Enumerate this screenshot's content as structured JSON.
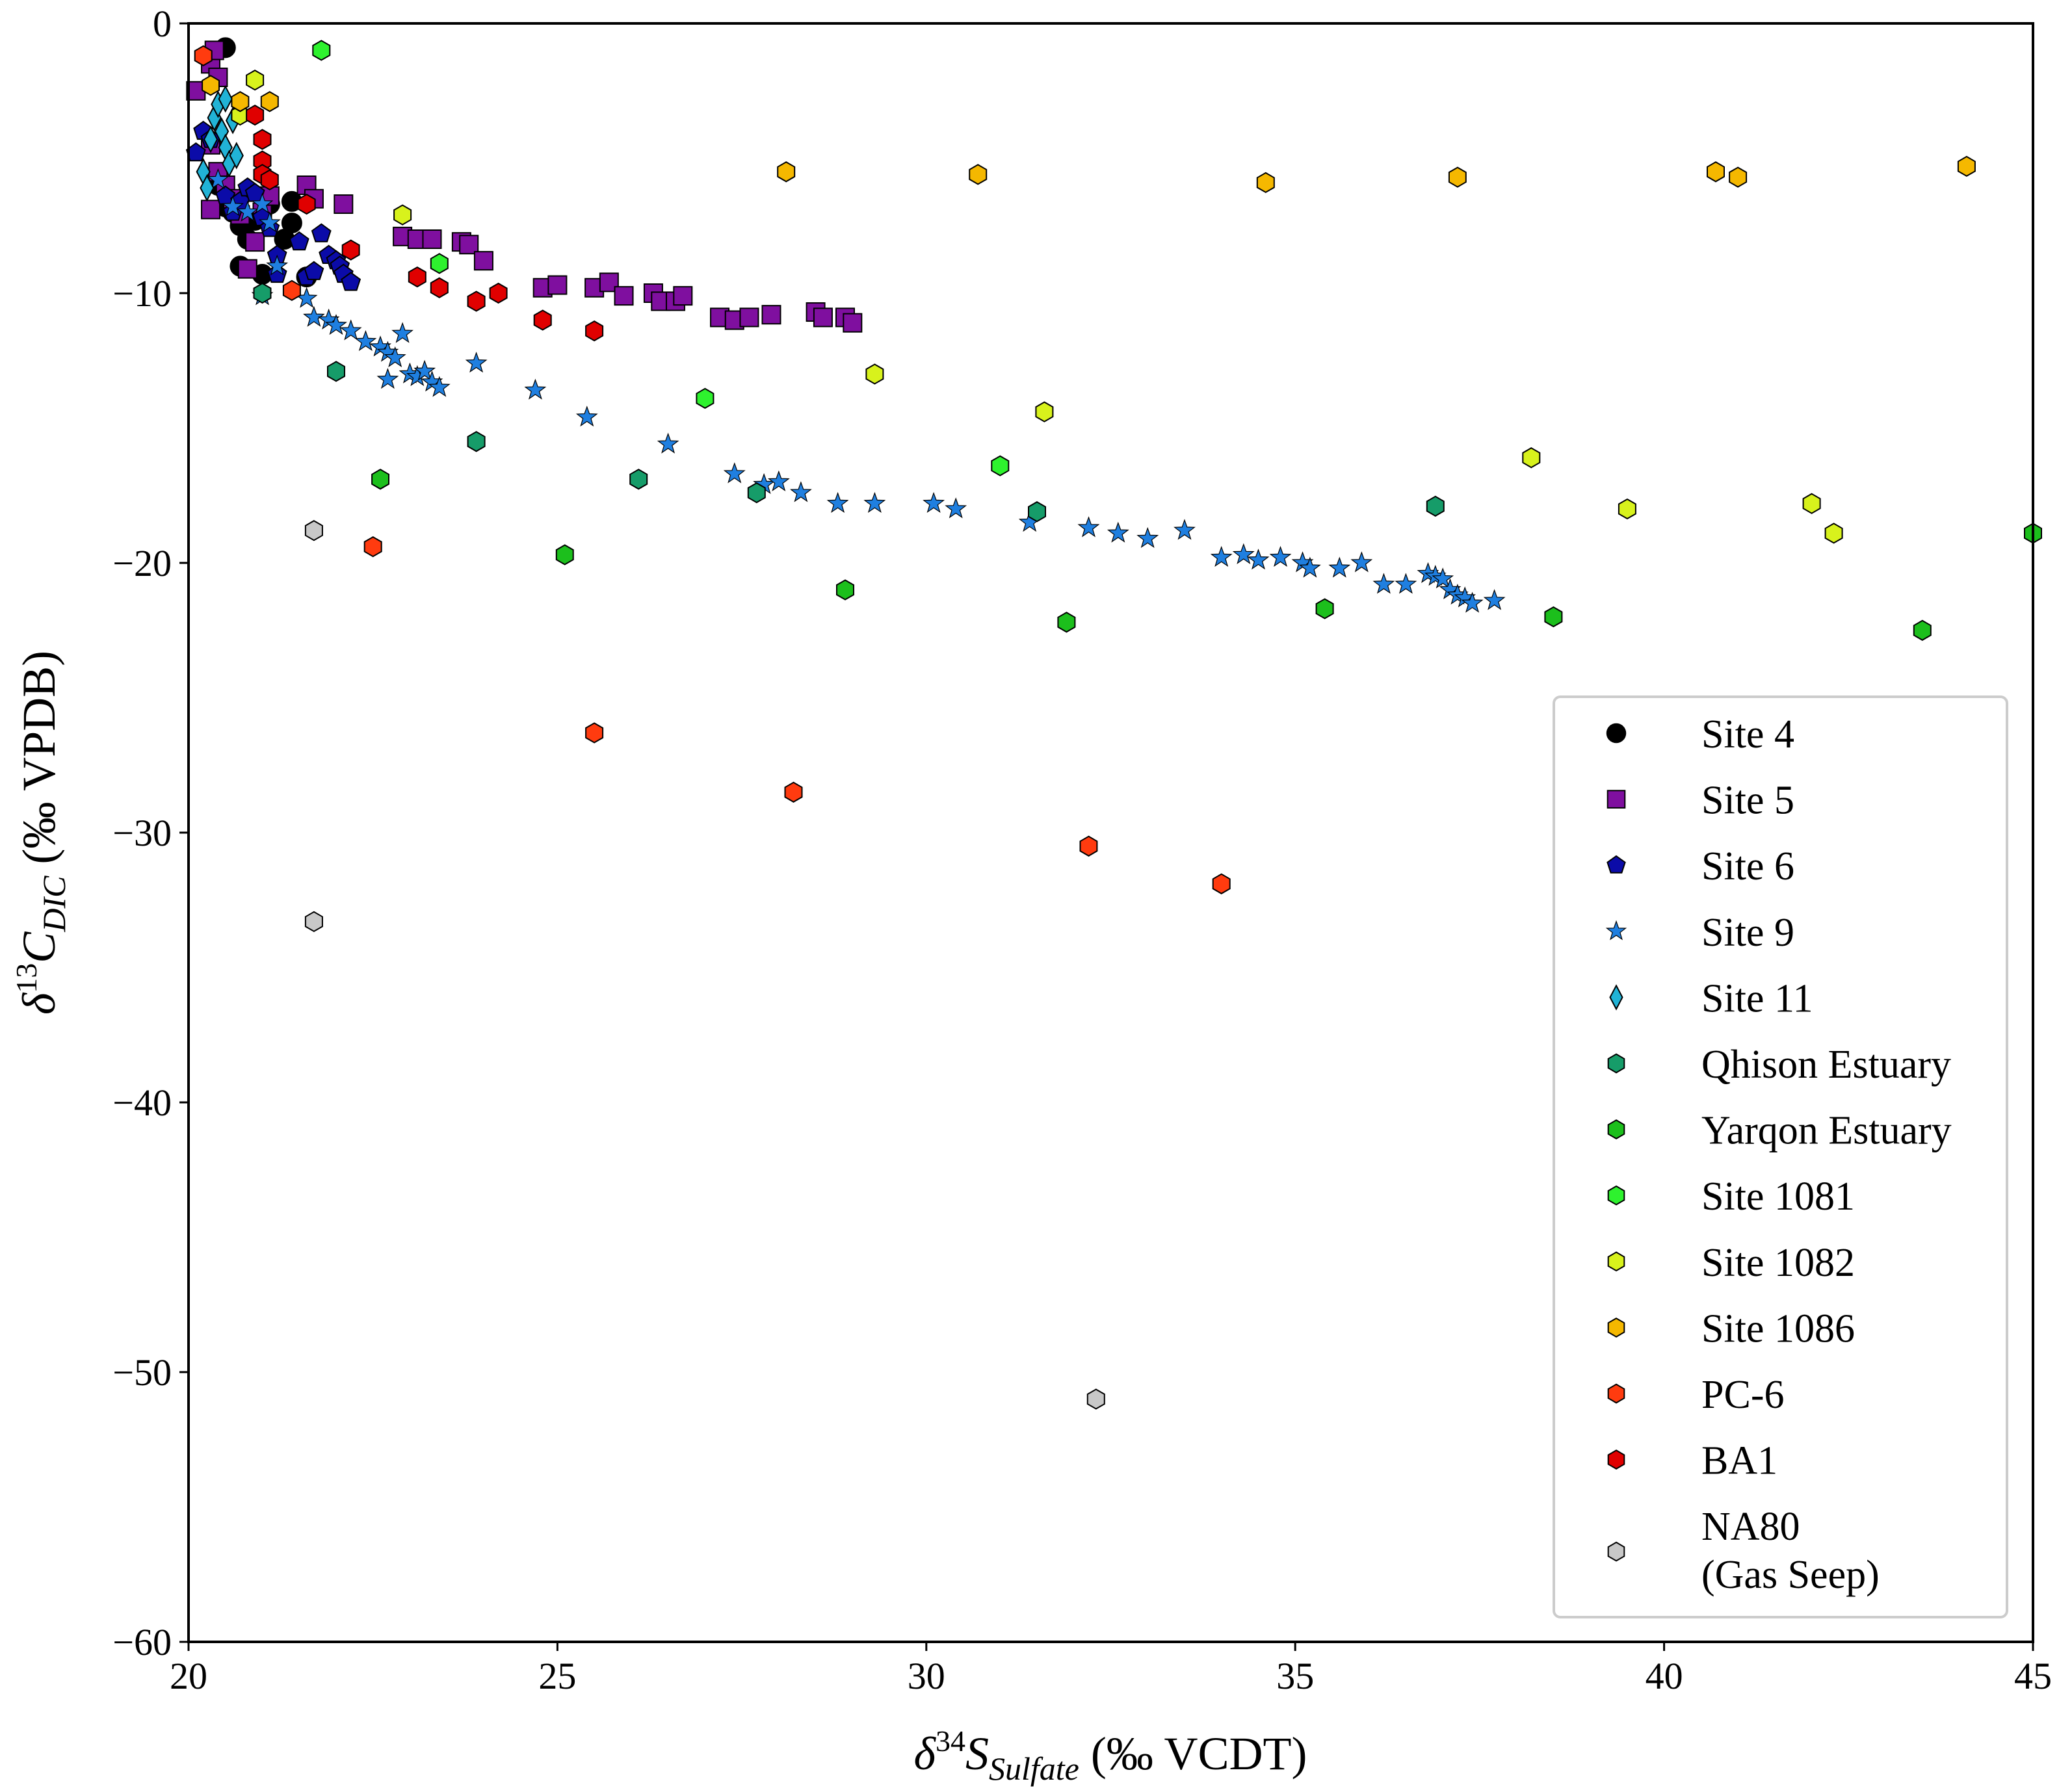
{
  "chart_data": {
    "type": "scatter",
    "title": "",
    "xlabel": {
      "prefix": "δ",
      "sup": "34",
      "var": "S",
      "sub": "Sulfate",
      "units": "(‰ VCDT)"
    },
    "ylabel": {
      "prefix": "δ",
      "sup": "13",
      "var": "C",
      "sub": "DIC",
      "units": "(‰ VPDB)"
    },
    "xlim": [
      20,
      45
    ],
    "ylim": [
      -60,
      0
    ],
    "xticks": [
      20,
      25,
      30,
      35,
      40,
      45
    ],
    "yticks": [
      0,
      -10,
      -20,
      -30,
      -40,
      -50,
      -60
    ],
    "xtick_labels": [
      "20",
      "25",
      "30",
      "35",
      "40",
      "45"
    ],
    "ytick_labels": [
      "0",
      "−10",
      "−20",
      "−30",
      "−40",
      "−50",
      "−60"
    ],
    "grid": false,
    "legend_position": "lower-right",
    "series": [
      {
        "name": "Site 4",
        "marker": "circle",
        "color": "#000000",
        "points": [
          [
            20.5,
            -0.9
          ],
          [
            20.4,
            -6.0
          ],
          [
            20.5,
            -6.8
          ],
          [
            20.6,
            -7.0
          ],
          [
            20.7,
            -7.5
          ],
          [
            20.8,
            -8.0
          ],
          [
            20.9,
            -7.3
          ],
          [
            20.7,
            -9.0
          ],
          [
            21.0,
            -9.3
          ],
          [
            21.3,
            -8.0
          ],
          [
            21.4,
            -7.4
          ],
          [
            21.4,
            -6.6
          ],
          [
            21.6,
            -9.4
          ],
          [
            21.1,
            -6.7
          ]
        ]
      },
      {
        "name": "Site 5",
        "marker": "square",
        "color": "#7f0f9f",
        "points": [
          [
            20.1,
            -2.5
          ],
          [
            20.3,
            -1.5
          ],
          [
            20.35,
            -1.0
          ],
          [
            20.4,
            -2.0
          ],
          [
            20.3,
            -4.5
          ],
          [
            20.4,
            -5.5
          ],
          [
            20.5,
            -6.0
          ],
          [
            20.6,
            -6.5
          ],
          [
            20.7,
            -7.1
          ],
          [
            20.3,
            -6.9
          ],
          [
            20.9,
            -8.1
          ],
          [
            20.8,
            -9.1
          ],
          [
            21.0,
            -7.0
          ],
          [
            21.1,
            -6.4
          ],
          [
            21.6,
            -6.0
          ],
          [
            21.7,
            -6.5
          ],
          [
            22.1,
            -6.7
          ],
          [
            22.9,
            -7.9
          ],
          [
            23.1,
            -8.0
          ],
          [
            23.3,
            -8.0
          ],
          [
            23.7,
            -8.1
          ],
          [
            23.8,
            -8.2
          ],
          [
            24.0,
            -8.8
          ],
          [
            24.8,
            -9.8
          ],
          [
            25.0,
            -9.7
          ],
          [
            25.5,
            -9.8
          ],
          [
            25.7,
            -9.6
          ],
          [
            25.9,
            -10.1
          ],
          [
            26.3,
            -10.0
          ],
          [
            26.4,
            -10.3
          ],
          [
            26.6,
            -10.3
          ],
          [
            26.7,
            -10.1
          ],
          [
            27.2,
            -10.9
          ],
          [
            27.4,
            -11.0
          ],
          [
            27.6,
            -10.9
          ],
          [
            27.9,
            -10.8
          ],
          [
            28.5,
            -10.7
          ],
          [
            28.6,
            -10.9
          ],
          [
            28.9,
            -10.9
          ],
          [
            29.0,
            -11.1
          ]
        ]
      },
      {
        "name": "Site 6",
        "marker": "pentagon",
        "color": "#0b0ba8",
        "points": [
          [
            20.1,
            -4.8
          ],
          [
            20.2,
            -4.0
          ],
          [
            20.3,
            -4.3
          ],
          [
            20.5,
            -6.4
          ],
          [
            20.6,
            -7.0
          ],
          [
            20.7,
            -6.6
          ],
          [
            20.8,
            -6.1
          ],
          [
            20.9,
            -6.3
          ],
          [
            21.0,
            -7.2
          ],
          [
            21.1,
            -7.6
          ],
          [
            21.2,
            -8.6
          ],
          [
            21.2,
            -9.3
          ],
          [
            21.5,
            -8.1
          ],
          [
            21.6,
            -9.4
          ],
          [
            21.7,
            -9.2
          ],
          [
            21.8,
            -7.8
          ],
          [
            21.9,
            -8.6
          ],
          [
            22.0,
            -8.8
          ],
          [
            22.05,
            -9.0
          ],
          [
            22.1,
            -9.3
          ],
          [
            22.2,
            -9.6
          ]
        ]
      },
      {
        "name": "Site 9",
        "marker": "star",
        "color": "#1f7fe0",
        "points": [
          [
            20.4,
            -5.8
          ],
          [
            20.6,
            -6.8
          ],
          [
            20.8,
            -7.0
          ],
          [
            21.0,
            -6.7
          ],
          [
            21.1,
            -7.4
          ],
          [
            21.2,
            -9.0
          ],
          [
            21.0,
            -10.1
          ],
          [
            21.6,
            -10.2
          ],
          [
            21.7,
            -10.9
          ],
          [
            21.9,
            -11.0
          ],
          [
            22.0,
            -11.2
          ],
          [
            22.2,
            -11.4
          ],
          [
            22.4,
            -11.8
          ],
          [
            22.6,
            -12.0
          ],
          [
            22.7,
            -12.2
          ],
          [
            22.8,
            -12.4
          ],
          [
            22.9,
            -11.5
          ],
          [
            23.0,
            -13.0
          ],
          [
            23.1,
            -13.1
          ],
          [
            23.2,
            -12.9
          ],
          [
            23.3,
            -13.3
          ],
          [
            23.4,
            -13.5
          ],
          [
            22.7,
            -13.2
          ],
          [
            23.9,
            -12.6
          ],
          [
            24.7,
            -13.6
          ],
          [
            25.4,
            -14.6
          ],
          [
            26.5,
            -15.6
          ],
          [
            27.4,
            -16.7
          ],
          [
            27.8,
            -17.1
          ],
          [
            28.0,
            -17.0
          ],
          [
            28.3,
            -17.4
          ],
          [
            28.8,
            -17.8
          ],
          [
            29.3,
            -17.8
          ],
          [
            30.1,
            -17.8
          ],
          [
            30.4,
            -18.0
          ],
          [
            31.4,
            -18.5
          ],
          [
            32.2,
            -18.7
          ],
          [
            32.6,
            -18.9
          ],
          [
            33.0,
            -19.1
          ],
          [
            33.5,
            -18.8
          ],
          [
            34.0,
            -19.8
          ],
          [
            34.3,
            -19.7
          ],
          [
            34.5,
            -19.9
          ],
          [
            34.8,
            -19.8
          ],
          [
            35.1,
            -20.0
          ],
          [
            35.2,
            -20.2
          ],
          [
            35.6,
            -20.2
          ],
          [
            35.9,
            -20.0
          ],
          [
            36.2,
            -20.8
          ],
          [
            36.5,
            -20.8
          ],
          [
            36.8,
            -20.4
          ],
          [
            36.9,
            -20.5
          ],
          [
            37.0,
            -20.6
          ],
          [
            37.1,
            -21.0
          ],
          [
            37.2,
            -21.2
          ],
          [
            37.3,
            -21.3
          ],
          [
            37.4,
            -21.5
          ],
          [
            37.7,
            -21.4
          ]
        ]
      },
      {
        "name": "Site 11",
        "marker": "diamond",
        "color": "#21b3d6",
        "points": [
          [
            20.2,
            -5.5
          ],
          [
            20.25,
            -6.1
          ],
          [
            20.3,
            -4.3
          ],
          [
            20.35,
            -3.5
          ],
          [
            20.4,
            -3.0
          ],
          [
            20.45,
            -4.0
          ],
          [
            20.5,
            -4.6
          ],
          [
            20.5,
            -2.8
          ],
          [
            20.55,
            -5.2
          ],
          [
            20.6,
            -3.6
          ],
          [
            20.65,
            -4.9
          ]
        ]
      },
      {
        "name": "Qhison Estuary",
        "marker": "hexagon",
        "color": "#169c69",
        "points": [
          [
            22.0,
            -12.9
          ],
          [
            23.9,
            -15.5
          ],
          [
            26.1,
            -16.9
          ],
          [
            27.7,
            -17.4
          ],
          [
            31.5,
            -18.1
          ],
          [
            36.9,
            -17.9
          ],
          [
            21.0,
            -10.0
          ]
        ]
      },
      {
        "name": "Yarqon Estuary",
        "marker": "hexagon",
        "color": "#1cbf1c",
        "points": [
          [
            22.6,
            -16.9
          ],
          [
            25.1,
            -19.7
          ],
          [
            28.9,
            -21.0
          ],
          [
            31.9,
            -22.2
          ],
          [
            35.4,
            -21.7
          ],
          [
            38.5,
            -22.0
          ],
          [
            43.5,
            -22.5
          ],
          [
            45.0,
            -18.9
          ]
        ]
      },
      {
        "name": "Site 1081",
        "marker": "hexagon",
        "color": "#2ef22e",
        "points": [
          [
            21.8,
            -1.0
          ],
          [
            23.4,
            -8.9
          ],
          [
            27.0,
            -13.9
          ],
          [
            31.0,
            -16.4
          ]
        ]
      },
      {
        "name": "Site 1082",
        "marker": "hexagon",
        "color": "#d8f21c",
        "points": [
          [
            20.9,
            -2.1
          ],
          [
            22.9,
            -7.1
          ],
          [
            29.3,
            -13.0
          ],
          [
            31.6,
            -14.4
          ],
          [
            38.2,
            -16.1
          ],
          [
            39.5,
            -18.0
          ],
          [
            42.0,
            -17.8
          ],
          [
            42.3,
            -18.9
          ],
          [
            20.7,
            -3.4
          ]
        ]
      },
      {
        "name": "Site 1086",
        "marker": "hexagon",
        "color": "#f5b800",
        "points": [
          [
            20.3,
            -2.3
          ],
          [
            20.7,
            -2.9
          ],
          [
            21.1,
            -2.9
          ],
          [
            28.1,
            -5.5
          ],
          [
            30.7,
            -5.6
          ],
          [
            34.6,
            -5.9
          ],
          [
            37.2,
            -5.7
          ],
          [
            40.7,
            -5.5
          ],
          [
            41.0,
            -5.7
          ],
          [
            44.1,
            -5.3
          ]
        ]
      },
      {
        "name": "PC-6",
        "marker": "hexagon",
        "color": "#ff3b0f",
        "points": [
          [
            20.2,
            -1.2
          ],
          [
            21.4,
            -9.9
          ],
          [
            22.5,
            -19.4
          ],
          [
            25.5,
            -26.3
          ],
          [
            28.2,
            -28.5
          ],
          [
            32.2,
            -30.5
          ],
          [
            34.0,
            -31.9
          ]
        ]
      },
      {
        "name": "BA1",
        "marker": "hexagon",
        "color": "#e00000",
        "points": [
          [
            20.9,
            -3.4
          ],
          [
            21.0,
            -4.3
          ],
          [
            21.0,
            -5.1
          ],
          [
            21.0,
            -5.6
          ],
          [
            21.1,
            -5.8
          ],
          [
            21.6,
            -6.7
          ],
          [
            22.2,
            -8.4
          ],
          [
            23.1,
            -9.4
          ],
          [
            23.4,
            -9.8
          ],
          [
            23.9,
            -10.3
          ],
          [
            24.2,
            -10.0
          ],
          [
            24.8,
            -11.0
          ],
          [
            25.5,
            -11.4
          ]
        ]
      },
      {
        "name": "NA80\n(Gas Seep)",
        "marker": "hexagon",
        "color": "#c8c8c8",
        "points": [
          [
            21.7,
            -18.8
          ],
          [
            21.7,
            -33.3
          ],
          [
            32.3,
            -51.0
          ]
        ]
      }
    ]
  }
}
